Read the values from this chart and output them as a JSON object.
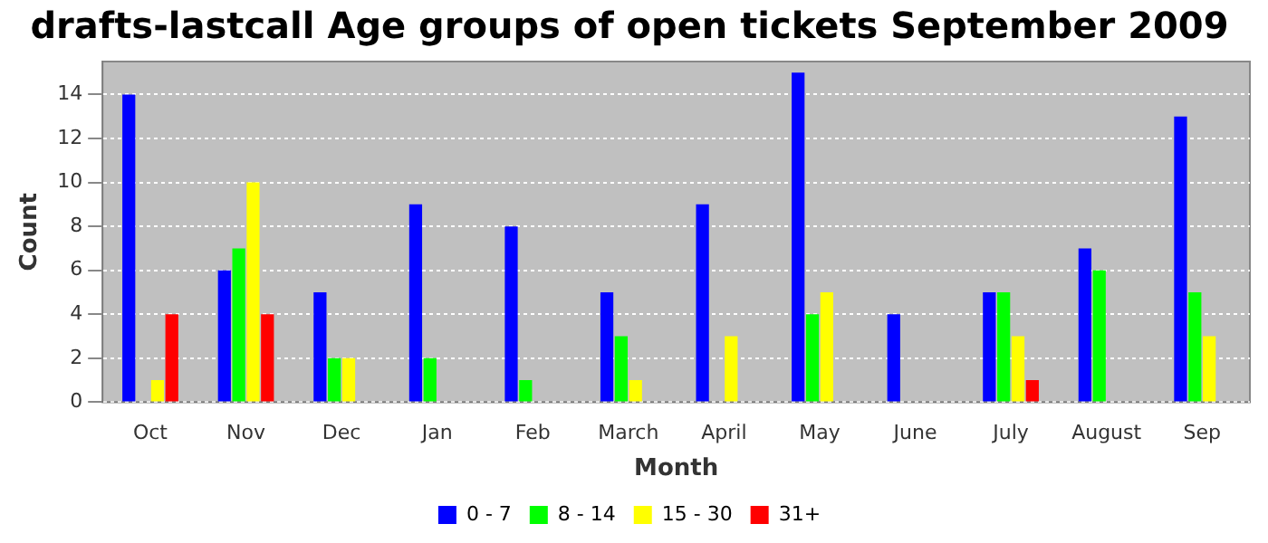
{
  "chart_data": {
    "type": "bar",
    "title": "drafts-lastcall Age groups of open tickets September 2009",
    "xlabel": "Month",
    "ylabel": "Count",
    "categories": [
      "Oct",
      "Nov",
      "Dec",
      "Jan",
      "Feb",
      "March",
      "April",
      "May",
      "June",
      "July",
      "August",
      "Sep"
    ],
    "series": [
      {
        "name": "0 - 7",
        "color": "#0000ff",
        "values": [
          14,
          6,
          5,
          9,
          8,
          5,
          9,
          15,
          4,
          5,
          7,
          13
        ]
      },
      {
        "name": "8 - 14",
        "color": "#00ff00",
        "values": [
          0,
          7,
          2,
          2,
          1,
          3,
          0,
          4,
          0,
          5,
          6,
          5
        ]
      },
      {
        "name": "15 - 30",
        "color": "#ffff00",
        "values": [
          1,
          10,
          2,
          0,
          0,
          1,
          3,
          5,
          0,
          3,
          0,
          3
        ]
      },
      {
        "name": "31+",
        "color": "#ff0000",
        "values": [
          4,
          4,
          0,
          0,
          0,
          0,
          0,
          0,
          0,
          1,
          0,
          0
        ]
      }
    ],
    "ylim": [
      0,
      15.5
    ],
    "yticks": [
      0,
      2,
      4,
      6,
      8,
      10,
      12,
      14
    ],
    "grid": "y",
    "legend": "bottom"
  }
}
